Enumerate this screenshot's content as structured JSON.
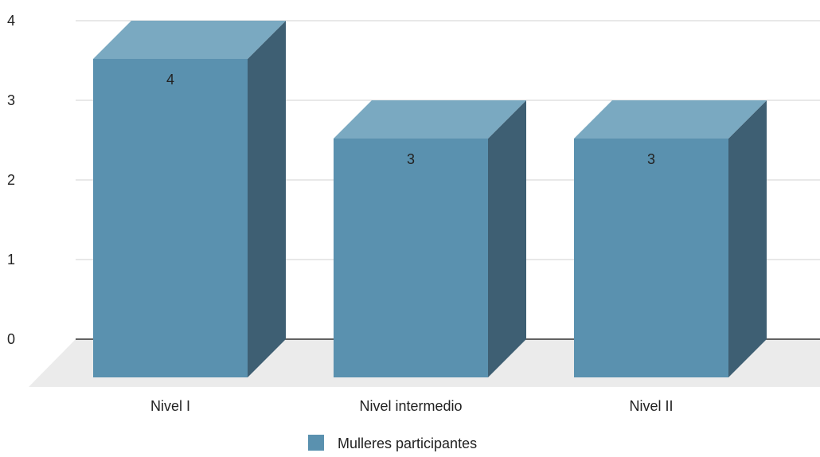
{
  "chart_data": {
    "type": "bar",
    "style": "3d",
    "categories": [
      "Nivel I",
      "Nivel intermedio",
      "Nivel II"
    ],
    "series": [
      {
        "name": "Mulleres participantes",
        "values": [
          4,
          3,
          3
        ],
        "color": "#5a91af"
      }
    ],
    "data_labels": [
      "4",
      "3",
      "3"
    ],
    "yticks": [
      "0",
      "1",
      "2",
      "3",
      "4"
    ],
    "ylim": [
      0,
      4
    ],
    "grid": true,
    "legend_position": "bottom",
    "colors": {
      "bar_front": "#5a91af",
      "bar_top": "#7aa9c1",
      "bar_side": "#3e5f73",
      "floor": "#ebebeb",
      "gridline": "#d9d9d9",
      "baseline": "#333333",
      "text": "#222222"
    }
  }
}
